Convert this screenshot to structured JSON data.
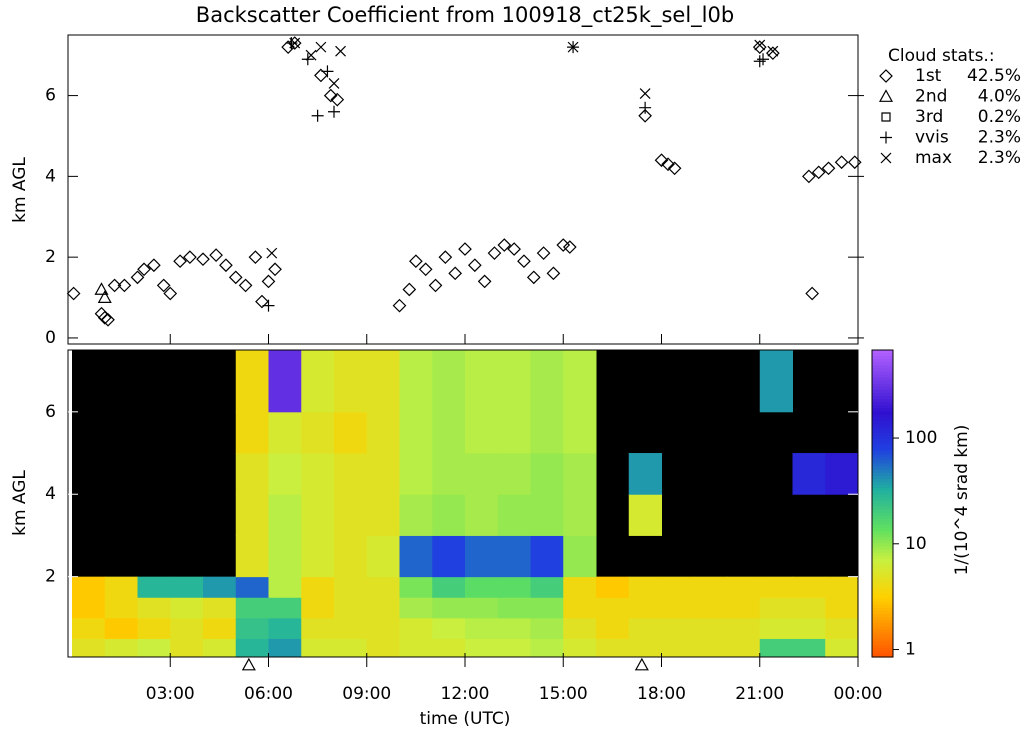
{
  "chart_data": [
    {
      "type": "scatter",
      "title": "Backscatter Coefficient from 100918_ct25k_sel_l0b",
      "ylabel": "km AGL",
      "xlim": [
        0,
        24
      ],
      "ylim": [
        -0.15,
        7.5
      ],
      "yticks": [
        0,
        2,
        4,
        6
      ],
      "legend_title": "Cloud stats.:",
      "series": [
        {
          "name": "1st",
          "share": "42.5%",
          "marker": "diamond",
          "color": "#000000",
          "x": [
            0.05,
            0.9,
            1.0,
            1.1,
            1.3,
            1.6,
            2.0,
            2.2,
            2.5,
            2.8,
            3.0,
            3.3,
            3.6,
            4.0,
            4.4,
            4.7,
            5.0,
            5.3,
            5.6,
            5.8,
            6.0,
            6.2,
            6.6,
            6.8,
            7.6,
            7.9,
            8.1,
            10.0,
            10.3,
            10.5,
            10.8,
            11.1,
            11.4,
            11.7,
            12.0,
            12.3,
            12.6,
            12.9,
            13.2,
            13.5,
            13.8,
            14.1,
            14.4,
            14.7,
            15.0,
            15.2,
            17.5,
            18.0,
            18.2,
            18.4,
            21.0,
            21.4,
            22.5,
            22.6,
            22.8,
            23.1,
            23.5,
            23.9
          ],
          "y": [
            1.1,
            0.6,
            0.5,
            0.45,
            1.3,
            1.3,
            1.5,
            1.7,
            1.8,
            1.3,
            1.1,
            1.9,
            2.0,
            1.95,
            2.05,
            1.8,
            1.5,
            1.3,
            2.0,
            0.9,
            1.4,
            1.7,
            7.2,
            7.3,
            6.5,
            6.0,
            5.9,
            0.8,
            1.2,
            1.9,
            1.7,
            1.3,
            2.0,
            1.6,
            2.2,
            1.8,
            1.4,
            2.1,
            2.3,
            2.2,
            1.9,
            1.5,
            2.1,
            1.6,
            2.3,
            2.25,
            5.5,
            4.4,
            4.3,
            4.2,
            7.2,
            7.05,
            4.0,
            1.1,
            4.1,
            4.2,
            4.35,
            4.35
          ]
        },
        {
          "name": "2nd",
          "share": "4.0%",
          "marker": "triangle",
          "color": "#000000",
          "x": [
            0.9,
            1.0
          ],
          "y": [
            1.2,
            1.0
          ]
        },
        {
          "name": "3rd",
          "share": "0.2%",
          "marker": "square",
          "color": "#000000",
          "x": [],
          "y": []
        },
        {
          "name": "vvis",
          "share": "2.3%",
          "marker": "plus",
          "color": "#000000",
          "x": [
            6.0,
            6.7,
            7.2,
            7.5,
            7.8,
            8.0,
            15.3,
            17.5,
            21.0,
            21.1
          ],
          "y": [
            0.8,
            7.3,
            6.9,
            5.5,
            6.6,
            5.6,
            7.2,
            5.7,
            6.85,
            6.9
          ]
        },
        {
          "name": "max",
          "share": "2.3%",
          "marker": "x",
          "color": "#000000",
          "x": [
            6.1,
            6.8,
            7.3,
            7.6,
            8.2,
            8.0,
            15.3,
            17.5,
            21.0,
            21.4
          ],
          "y": [
            2.1,
            7.3,
            7.0,
            7.2,
            7.1,
            6.3,
            7.2,
            6.05,
            7.25,
            7.1
          ]
        }
      ]
    },
    {
      "type": "heatmap",
      "xlabel": "time (UTC)",
      "ylabel": "km AGL",
      "colorbar_label": "1/(10^4 srad km)",
      "xlim": [
        0,
        24
      ],
      "ylim": [
        0.05,
        7.5
      ],
      "yticks": [
        2,
        4,
        6
      ],
      "xticks": [
        {
          "value": 3,
          "label": "03:00"
        },
        {
          "value": 6,
          "label": "06:00"
        },
        {
          "value": 9,
          "label": "09:00"
        },
        {
          "value": 12,
          "label": "12:00"
        },
        {
          "value": 15,
          "label": "15:00"
        },
        {
          "value": 18,
          "label": "18:00"
        },
        {
          "value": 21,
          "label": "21:00"
        },
        {
          "value": 24,
          "label": "00:00"
        }
      ],
      "clim": [
        0.85,
        680
      ],
      "cticks": [
        1,
        10,
        100
      ],
      "log_color": true,
      "events_x": [
        5.4,
        17.4
      ],
      "heatmap": {
        "time_edges": [
          0,
          1,
          2,
          3,
          4,
          5,
          6,
          7,
          8,
          9,
          10,
          11,
          12,
          13,
          14,
          15,
          16,
          17,
          18,
          19,
          20,
          21,
          22,
          23,
          24
        ],
        "height_edges": [
          0.05,
          0.5,
          1,
          1.5,
          2,
          3,
          4,
          5,
          6,
          7.5
        ],
        "values": [
          [
            5,
            6,
            7,
            5,
            6,
            30,
            40,
            6,
            6,
            5,
            6,
            6,
            7,
            7,
            8,
            6,
            5,
            5,
            5,
            5,
            5,
            20,
            20,
            6
          ],
          [
            4,
            3,
            4,
            5,
            4,
            25,
            30,
            5,
            5,
            5,
            6,
            7,
            8,
            8,
            9,
            5,
            4,
            5,
            5,
            5,
            5,
            6,
            6,
            5
          ],
          [
            3,
            4,
            5,
            6,
            5,
            20,
            20,
            4,
            5,
            5,
            9,
            10,
            10,
            11,
            11,
            4,
            4,
            4,
            4,
            4,
            4,
            5,
            5,
            4
          ],
          [
            3,
            4,
            30,
            30,
            40,
            60,
            8,
            4,
            5,
            5,
            12,
            20,
            15,
            15,
            20,
            4,
            3,
            4,
            4,
            4,
            4,
            4,
            4,
            4
          ],
          [
            null,
            null,
            null,
            null,
            null,
            5,
            8,
            6,
            5,
            6,
            60,
            80,
            60,
            60,
            80,
            10,
            null,
            null,
            null,
            null,
            null,
            null,
            null,
            null
          ],
          [
            null,
            null,
            null,
            null,
            null,
            5,
            8,
            6,
            5,
            5,
            9,
            10,
            9,
            10,
            10,
            9,
            null,
            6,
            null,
            null,
            null,
            null,
            null,
            null
          ],
          [
            null,
            null,
            null,
            null,
            null,
            5,
            7,
            6,
            5,
            5,
            8,
            9,
            9,
            9,
            10,
            9,
            null,
            40,
            null,
            null,
            null,
            null,
            120,
            150
          ],
          [
            null,
            null,
            null,
            null,
            null,
            4,
            6,
            5,
            4,
            5,
            8,
            9,
            8,
            8,
            9,
            8,
            null,
            null,
            null,
            null,
            null,
            null,
            null,
            null
          ],
          [
            null,
            null,
            null,
            null,
            null,
            4,
            300,
            6,
            5,
            5,
            8,
            9,
            8,
            8,
            9,
            8,
            null,
            null,
            null,
            null,
            null,
            40,
            null,
            null
          ]
        ]
      }
    }
  ]
}
